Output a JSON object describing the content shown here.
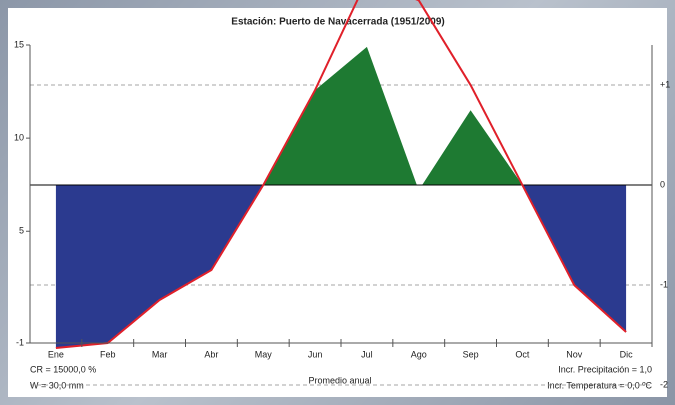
{
  "chart_data": {
    "type": "climate",
    "title": "Estación: Puerto de Navacerrada (1951/2009)",
    "categories": [
      "Ene",
      "Feb",
      "Mar",
      "Abr",
      "May",
      "Jun",
      "Jul",
      "Ago",
      "Sep",
      "Oct",
      "Nov",
      "Dic"
    ],
    "series": [
      {
        "name": "Temperatura",
        "color": "#e0202a",
        "values": [
          -1.27,
          -1,
          1.31,
          2.92,
          7.48,
          12.58,
          18.5,
          17.4,
          12.85,
          7.48,
          2.11,
          -0.41
        ]
      },
      {
        "name": "Precipitación",
        "color": "#1e7a32",
        "values": [
          null,
          null,
          null,
          null,
          7.48,
          12.58,
          14.9,
          7.2,
          11.5,
          7.48,
          null,
          null
        ]
      }
    ],
    "deficit_color": "#2b3a8f",
    "ylim": [
      -1,
      15
    ],
    "yticks": [
      -1,
      5,
      10,
      15
    ],
    "y2lim": [
      -1.58,
      1.4
    ],
    "y2ticks": [
      {
        "value": -2,
        "label": "-2"
      },
      {
        "value": -1,
        "label": "-1"
      },
      {
        "value": 0,
        "label": "0"
      },
      {
        "value": 1,
        "label": "+1"
      }
    ],
    "annotations": [
      "CR = 15000,0 %",
      "W = 30,0 mm",
      "Promedio anual",
      "Incr. Precipitación = 1,0",
      "Incr. Temperatura = 0,0 ºC"
    ]
  }
}
